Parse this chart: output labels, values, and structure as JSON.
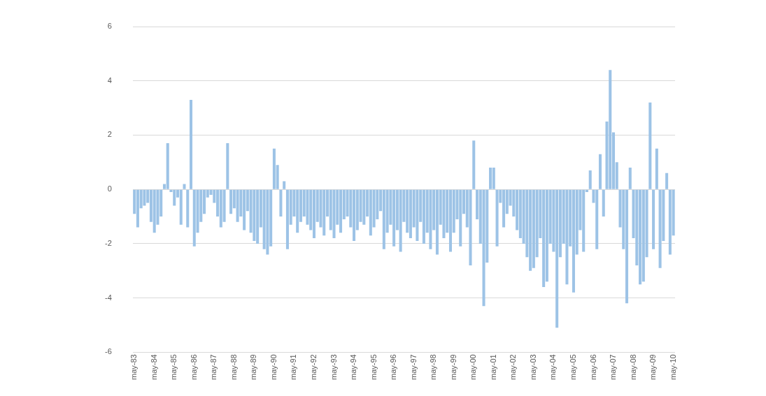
{
  "chart_data": {
    "type": "bar",
    "color": "#9dc3e6",
    "ylim": [
      -6,
      6
    ],
    "yticks": [
      -6,
      -4,
      -2,
      0,
      2,
      4,
      6
    ],
    "grid": "y",
    "legend": false,
    "categories": [
      "may-83",
      null,
      null,
      null,
      null,
      null,
      "may-84",
      null,
      null,
      null,
      null,
      null,
      "may-85",
      null,
      null,
      null,
      null,
      null,
      "may-86",
      null,
      null,
      null,
      null,
      null,
      "may-87",
      null,
      null,
      null,
      null,
      null,
      "may-88",
      null,
      null,
      null,
      null,
      null,
      "may-89",
      null,
      null,
      null,
      null,
      null,
      "may-90",
      null,
      null,
      null,
      null,
      null,
      "may-91",
      null,
      null,
      null,
      null,
      null,
      "may-92",
      null,
      null,
      null,
      null,
      null,
      "may-93",
      null,
      null,
      null,
      null,
      null,
      "may-94",
      null,
      null,
      null,
      null,
      null,
      "may-95",
      null,
      null,
      null,
      null,
      null,
      "may-96",
      null,
      null,
      null,
      null,
      null,
      "may-97",
      null,
      null,
      null,
      null,
      null,
      "may-98",
      null,
      null,
      null,
      null,
      null,
      "may-99",
      null,
      null,
      null,
      null,
      null,
      "may-00",
      null,
      null,
      null,
      null,
      null,
      "may-01",
      null,
      null,
      null,
      null,
      null,
      "may-02",
      null,
      null,
      null,
      null,
      null,
      "may-03",
      null,
      null,
      null,
      null,
      null,
      "may-04",
      null,
      null,
      null,
      null,
      null,
      "may-05",
      null,
      null,
      null,
      null,
      null,
      "may-06",
      null,
      null,
      null,
      null,
      null,
      "may-07",
      null,
      null,
      null,
      null,
      null,
      "may-08",
      null,
      null,
      null,
      null,
      null,
      "may-09",
      null,
      null,
      null,
      null,
      null,
      "may-10"
    ],
    "values": [
      -0.9,
      -1.4,
      -0.7,
      -0.6,
      -0.5,
      -1.2,
      -1.6,
      -1.3,
      -1.0,
      0.2,
      1.7,
      -0.1,
      -0.6,
      -0.3,
      -1.3,
      0.2,
      -1.4,
      3.3,
      -2.1,
      -1.6,
      -1.2,
      -0.9,
      -0.3,
      -0.2,
      -0.5,
      -1.0,
      -1.4,
      -1.2,
      1.7,
      -0.9,
      -0.7,
      -1.2,
      -1.0,
      -1.5,
      -0.8,
      -1.6,
      -1.9,
      -2.0,
      -1.4,
      -2.2,
      -2.4,
      -2.1,
      1.5,
      0.9,
      -1.0,
      0.3,
      -2.2,
      -1.3,
      -1.0,
      -1.6,
      -1.2,
      -1.0,
      -1.3,
      -1.5,
      -1.8,
      -1.2,
      -1.4,
      -1.7,
      -1.0,
      -1.5,
      -1.8,
      -1.3,
      -1.6,
      -1.1,
      -1.0,
      -1.4,
      -1.9,
      -1.5,
      -1.2,
      -1.3,
      -1.0,
      -1.7,
      -1.4,
      -1.1,
      -0.8,
      -2.2,
      -1.6,
      -1.3,
      -2.1,
      -1.5,
      -2.3,
      -1.2,
      -1.6,
      -1.8,
      -1.4,
      -1.9,
      -1.2,
      -2.0,
      -1.6,
      -2.2,
      -1.5,
      -2.4,
      -1.3,
      -1.8,
      -1.6,
      -2.3,
      -1.6,
      -1.1,
      -2.1,
      -0.9,
      -1.4,
      -2.8,
      1.8,
      -1.1,
      -2.0,
      -4.3,
      -2.7,
      0.8,
      0.8,
      -2.1,
      -0.5,
      -1.4,
      -0.9,
      -0.6,
      -1.0,
      -1.5,
      -1.8,
      -2.0,
      -2.5,
      -3.0,
      -2.9,
      -2.5,
      -1.8,
      -3.6,
      -3.4,
      -2.0,
      -2.3,
      -5.1,
      -2.5,
      -2.0,
      -3.5,
      -2.1,
      -3.8,
      -2.4,
      -1.5,
      -2.3,
      -0.1,
      0.7,
      -0.5,
      -2.2,
      1.3,
      -1.0,
      2.5,
      4.4,
      2.1,
      1.0,
      -1.4,
      -2.2,
      -4.2,
      0.8,
      -1.8,
      -2.8,
      -3.5,
      -3.4,
      -2.5,
      3.2,
      -2.2,
      1.5,
      -2.9,
      -1.9,
      0.6,
      -2.4,
      -1.7
    ]
  }
}
